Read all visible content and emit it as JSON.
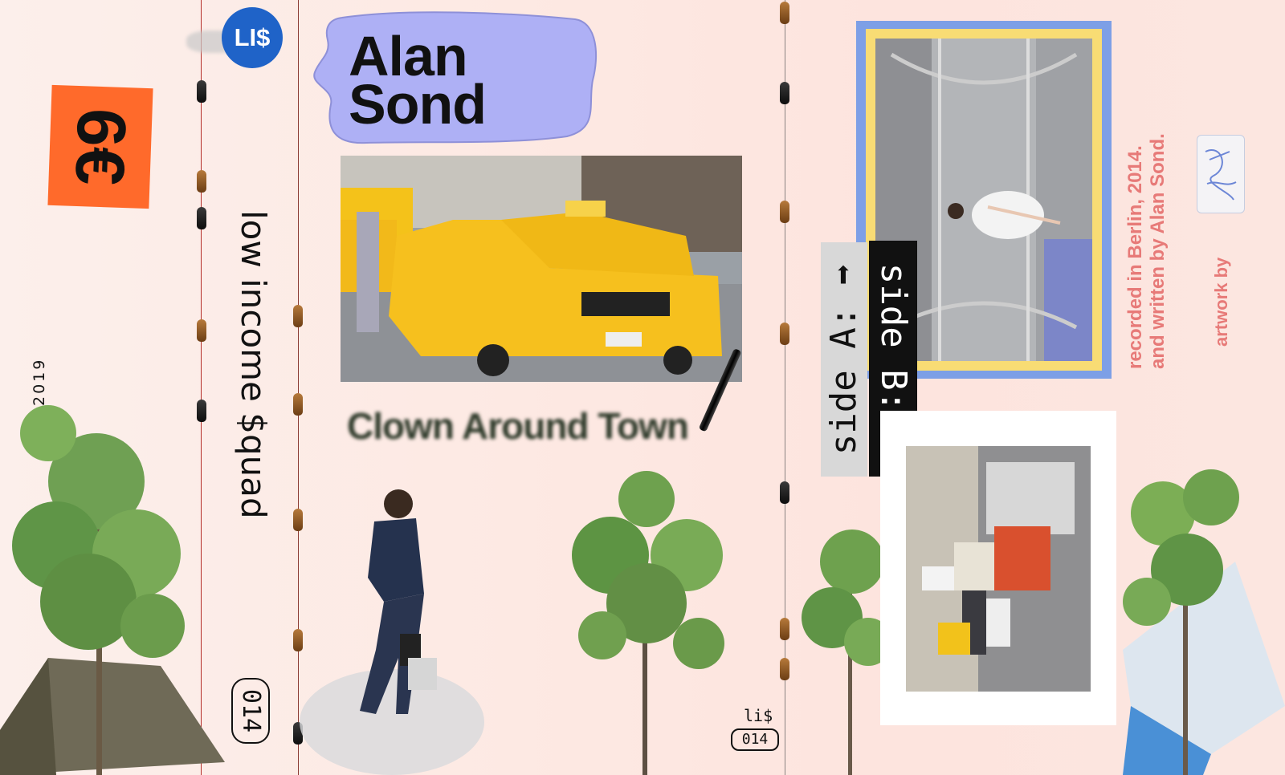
{
  "logo": {
    "text": "LI$"
  },
  "price": "6€",
  "year": "2019",
  "band_name": "low income $quad",
  "catalog": "014",
  "catalog_mid_label": "li$",
  "artist": {
    "line1": "Alan",
    "line2": "Sond"
  },
  "album_title": "Clown Around Town",
  "side_a": "side A: ➡",
  "side_b": "side B: ➡",
  "credits": {
    "line1": "recorded in Berlin, 2014.",
    "line2": "and written by Alan Sond."
  },
  "artwork_by": "artwork by",
  "colors": {
    "price_tag": "#ff6a2b",
    "logo": "#1f63c8",
    "artist_blob": "#aeb0f5",
    "credits": "#e77a78",
    "subway_frame": "#7d9fe6",
    "subway_inner": "#f8dc74"
  }
}
